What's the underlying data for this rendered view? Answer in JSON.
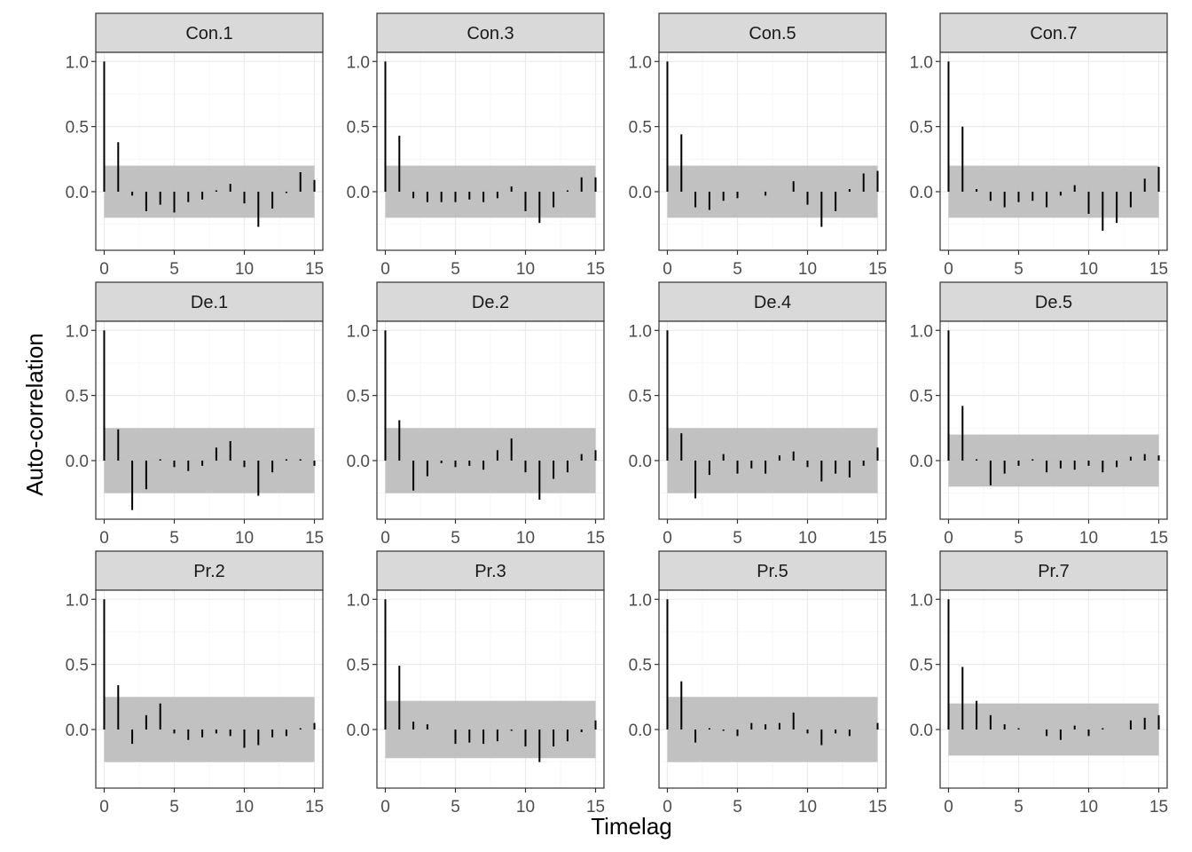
{
  "chart_data": {
    "type": "bar",
    "xlabel": "Timelag",
    "ylabel": "Auto-correlation",
    "xlim": [
      -0.6,
      15.6
    ],
    "ylim": [
      -0.45,
      1.07
    ],
    "x_ticks": [
      0,
      5,
      10,
      15
    ],
    "x_tick_labels": [
      "0",
      "5",
      "10",
      "15"
    ],
    "y_ticks": [
      0.0,
      0.5,
      1.0
    ],
    "y_tick_labels": [
      "0.0",
      "0.5",
      "1.0"
    ],
    "grid": true,
    "layout": "3 rows x 4 columns facets",
    "lags": [
      0,
      1,
      2,
      3,
      4,
      5,
      6,
      7,
      8,
      9,
      10,
      11,
      12,
      13,
      14,
      15
    ],
    "panels": [
      {
        "name": "Con.1",
        "band": 0.2,
        "values": [
          1.0,
          0.38,
          -0.03,
          -0.15,
          -0.1,
          -0.16,
          -0.08,
          -0.06,
          0.01,
          0.06,
          -0.09,
          -0.27,
          -0.13,
          -0.01,
          0.15,
          0.09
        ]
      },
      {
        "name": "Con.3",
        "band": 0.2,
        "values": [
          1.0,
          0.43,
          -0.05,
          -0.08,
          -0.08,
          -0.08,
          -0.06,
          -0.08,
          -0.05,
          0.04,
          -0.15,
          -0.24,
          -0.12,
          0.01,
          0.11,
          0.11
        ]
      },
      {
        "name": "Con.5",
        "band": 0.2,
        "values": [
          1.0,
          0.44,
          -0.12,
          -0.14,
          -0.07,
          -0.05,
          0.0,
          -0.03,
          0.0,
          0.08,
          -0.1,
          -0.27,
          -0.15,
          0.02,
          0.14,
          0.16
        ]
      },
      {
        "name": "Con.7",
        "band": 0.2,
        "values": [
          1.0,
          0.5,
          0.02,
          -0.07,
          -0.12,
          -0.08,
          -0.07,
          -0.12,
          -0.03,
          0.05,
          -0.17,
          -0.3,
          -0.24,
          -0.12,
          0.1,
          0.19
        ]
      },
      {
        "name": "De.1",
        "band": 0.25,
        "values": [
          1.0,
          0.24,
          -0.38,
          -0.22,
          0.01,
          -0.05,
          -0.08,
          -0.04,
          0.1,
          0.15,
          -0.05,
          -0.27,
          -0.09,
          0.01,
          0.01,
          -0.04
        ]
      },
      {
        "name": "De.2",
        "band": 0.25,
        "values": [
          1.0,
          0.31,
          -0.23,
          -0.12,
          -0.02,
          -0.05,
          -0.04,
          -0.07,
          0.08,
          0.17,
          -0.09,
          -0.3,
          -0.14,
          -0.09,
          0.05,
          0.08
        ]
      },
      {
        "name": "De.4",
        "band": 0.25,
        "values": [
          1.0,
          0.21,
          -0.29,
          -0.11,
          0.05,
          -0.1,
          -0.06,
          -0.1,
          0.04,
          0.07,
          -0.05,
          -0.16,
          -0.1,
          -0.13,
          -0.04,
          0.1
        ]
      },
      {
        "name": "De.5",
        "band": 0.2,
        "values": [
          1.0,
          0.42,
          0.01,
          -0.19,
          -0.1,
          -0.04,
          0.01,
          -0.09,
          -0.06,
          -0.07,
          -0.04,
          -0.09,
          -0.05,
          0.03,
          0.05,
          0.04
        ]
      },
      {
        "name": "Pr.2",
        "band": 0.25,
        "values": [
          1.0,
          0.34,
          -0.11,
          0.11,
          0.2,
          -0.03,
          -0.08,
          -0.06,
          -0.03,
          -0.05,
          -0.14,
          -0.12,
          -0.06,
          -0.05,
          0.01,
          0.05
        ]
      },
      {
        "name": "Pr.3",
        "band": 0.22,
        "values": [
          1.0,
          0.49,
          0.06,
          0.04,
          0.0,
          -0.11,
          -0.1,
          -0.11,
          -0.09,
          -0.01,
          -0.13,
          -0.25,
          -0.13,
          -0.09,
          -0.02,
          0.07
        ]
      },
      {
        "name": "Pr.5",
        "band": 0.25,
        "values": [
          1.0,
          0.37,
          -0.1,
          0.01,
          -0.01,
          -0.05,
          0.05,
          0.04,
          0.05,
          0.13,
          -0.03,
          -0.12,
          -0.03,
          -0.05,
          0.0,
          0.05
        ]
      },
      {
        "name": "Pr.7",
        "band": 0.2,
        "values": [
          1.0,
          0.48,
          0.22,
          0.11,
          0.04,
          0.01,
          0.0,
          -0.05,
          -0.08,
          0.03,
          -0.05,
          0.01,
          0.0,
          0.07,
          0.09,
          0.11
        ]
      }
    ]
  },
  "colors": {
    "panel_background": "#ffffff",
    "panel_border": "#333333",
    "grid_major": "#ebebeb",
    "grid_minor": "#f5f5f5",
    "strip_fill": "#d9d9d9",
    "band_fill": "#bebebe",
    "bar": "#000000",
    "tick_text": "#4d4d4d"
  }
}
